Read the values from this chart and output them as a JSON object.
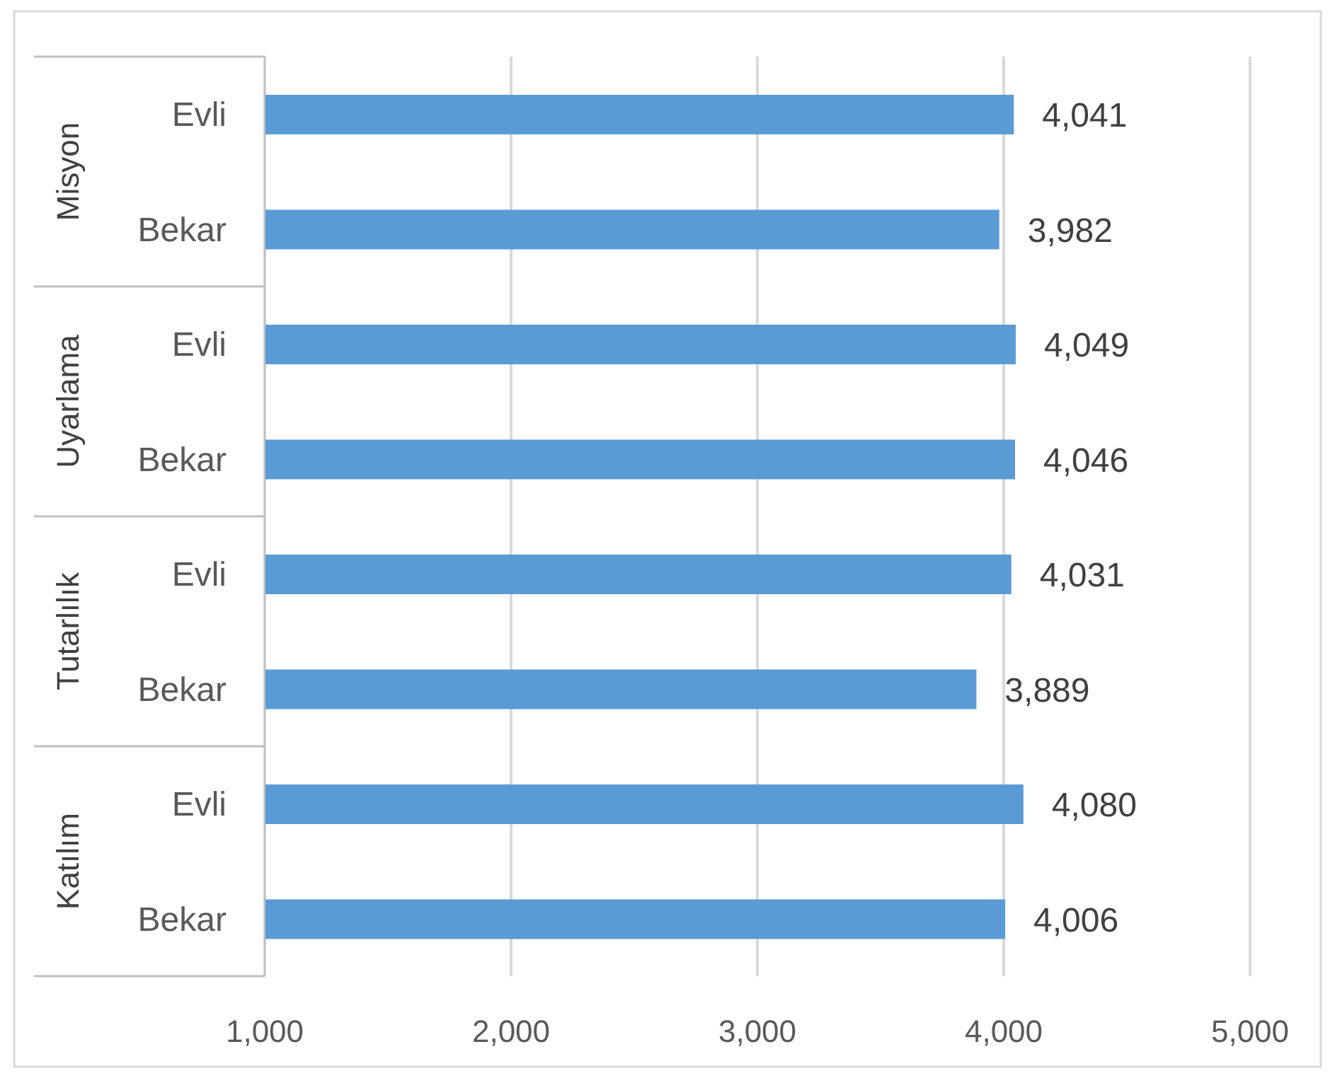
{
  "chart_data": {
    "type": "bar",
    "orientation": "horizontal",
    "categories": [
      "Evli",
      "Bekar",
      "Evli",
      "Bekar",
      "Evli",
      "Bekar",
      "Evli",
      "Bekar"
    ],
    "values": [
      4041,
      3982,
      4049,
      4046,
      4031,
      3889,
      4080,
      4006
    ],
    "value_labels": [
      "4,041",
      "3,982",
      "4,049",
      "4,046",
      "4,031",
      "3,889",
      "4,080",
      "4,006"
    ],
    "color": "#5b9bd5",
    "xlim": [
      1000,
      5000
    ],
    "xticks": [
      {
        "value": 1000,
        "label": "1,000"
      },
      {
        "value": 2000,
        "label": "2,000"
      },
      {
        "value": 3000,
        "label": "3,000"
      },
      {
        "value": 4000,
        "label": "4,000"
      },
      {
        "value": 5000,
        "label": "5,000"
      }
    ],
    "grid": "x",
    "annotations": [
      "Misyon",
      "Uyarlama",
      "Tutarlılık",
      "Katılım"
    ]
  }
}
